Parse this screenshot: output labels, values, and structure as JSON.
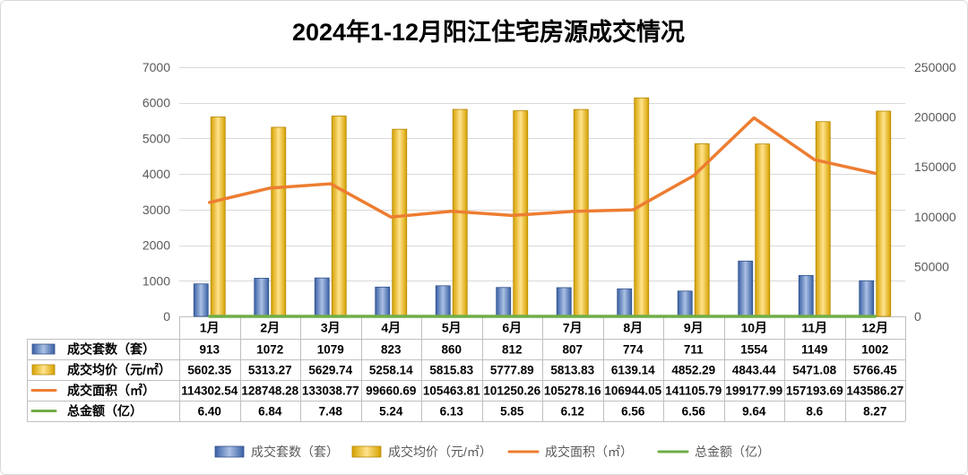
{
  "chart_data": {
    "type": "bar",
    "title": "2024年1-12月阳江住宅房源成交情况",
    "categories": [
      "1月",
      "2月",
      "3月",
      "4月",
      "5月",
      "6月",
      "7月",
      "8月",
      "9月",
      "10月",
      "11月",
      "12月"
    ],
    "series": [
      {
        "name": "成交套数（套）",
        "type": "bar",
        "axis": "left",
        "color": "#4472C4",
        "values": [
          913,
          1072,
          1079,
          823,
          860,
          812,
          807,
          774,
          711,
          1554,
          1149,
          1002
        ],
        "labels": [
          "913",
          "1072",
          "1079",
          "823",
          "860",
          "812",
          "807",
          "774",
          "711",
          "1554",
          "1149",
          "1002"
        ]
      },
      {
        "name": "成交均价（元/㎡）",
        "type": "bar",
        "axis": "left",
        "color": "#FFC000",
        "values": [
          5602.35,
          5313.27,
          5629.74,
          5258.14,
          5815.83,
          5777.89,
          5813.83,
          6139.14,
          4852.29,
          4843.44,
          5471.08,
          5766.45
        ],
        "labels": [
          "5602.35",
          "5313.27",
          "5629.74",
          "5258.14",
          "5815.83",
          "5777.89",
          "5813.83",
          "6139.14",
          "4852.29",
          "4843.44",
          "5471.08",
          "5766.45"
        ]
      },
      {
        "name": "成交面积（㎡）",
        "type": "line",
        "axis": "right",
        "color": "#ED7D31",
        "values": [
          114302.54,
          128748.28,
          133038.77,
          99660.69,
          105463.81,
          101250.26,
          105278.16,
          106944.05,
          141105.79,
          199177.99,
          157193.69,
          143586.27
        ],
        "labels": [
          "114302.54",
          "128748.28",
          "133038.77",
          "99660.69",
          "105463.81",
          "101250.26",
          "105278.16",
          "106944.05",
          "141105.79",
          "199177.99",
          "157193.69",
          "143586.27"
        ]
      },
      {
        "name": "总金额（亿）",
        "type": "line",
        "axis": "right",
        "color": "#70AD47",
        "values": [
          6.4,
          6.84,
          7.48,
          5.24,
          6.13,
          5.85,
          6.12,
          6.56,
          6.56,
          9.64,
          8.6,
          8.27
        ],
        "labels": [
          "6.40",
          "6.84",
          "7.48",
          "5.24",
          "6.13",
          "5.85",
          "6.12",
          "6.56",
          "6.56",
          "9.64",
          "8.6",
          "8.27"
        ]
      }
    ],
    "y_left": {
      "min": 0,
      "max": 7000,
      "ticks": [
        0,
        1000,
        2000,
        3000,
        4000,
        5000,
        6000,
        7000
      ]
    },
    "y_right": {
      "min": 0,
      "max": 250000,
      "ticks": [
        0,
        50000,
        100000,
        150000,
        200000,
        250000
      ]
    },
    "grid": true,
    "legend": "bottom",
    "data_table": true
  }
}
